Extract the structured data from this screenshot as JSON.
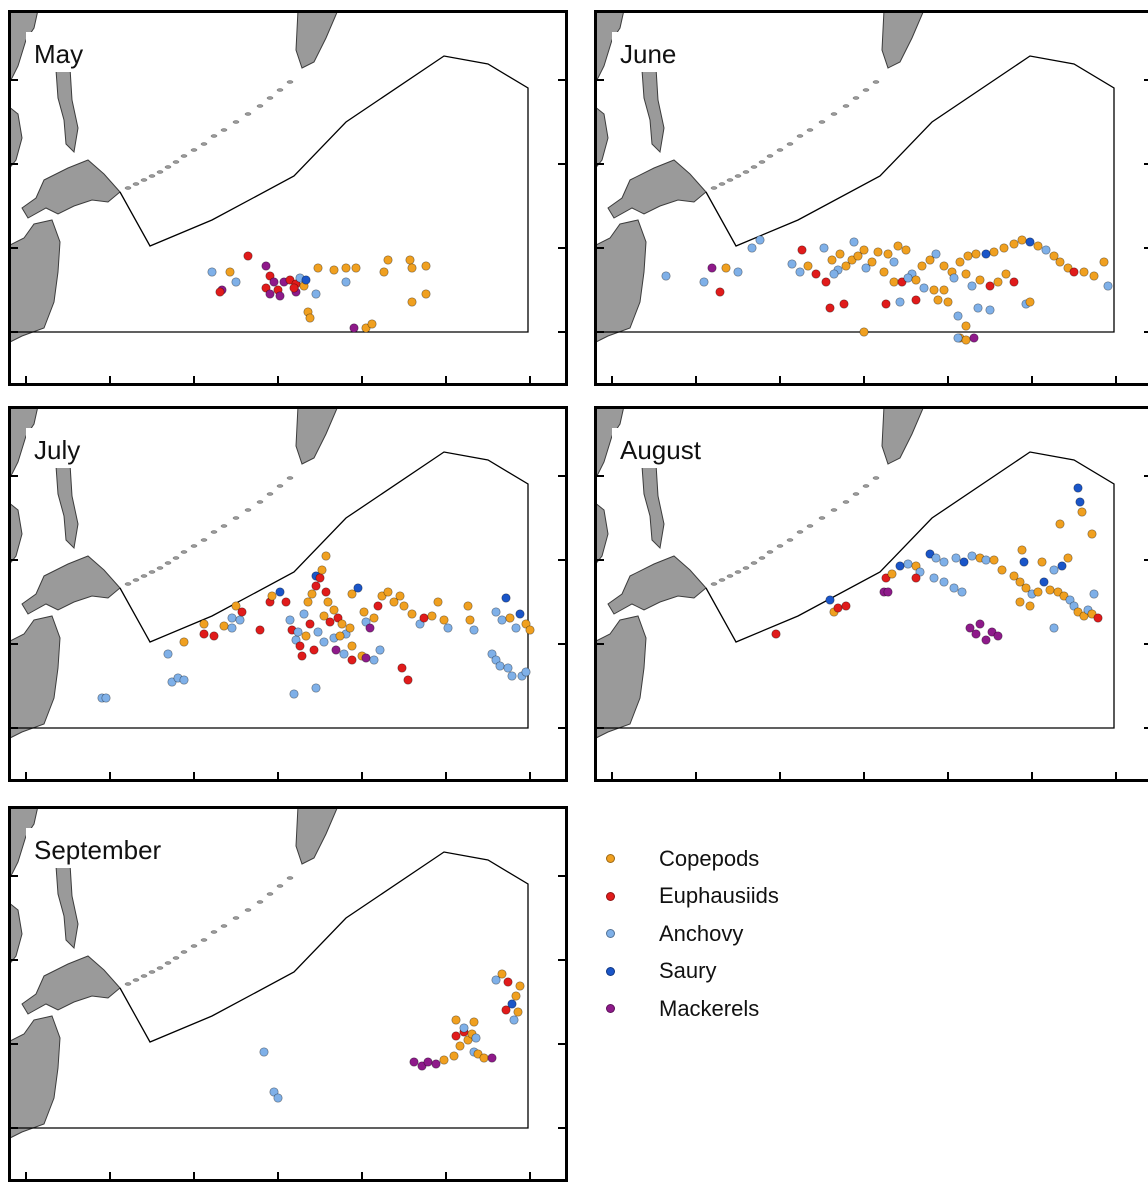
{
  "figure": {
    "panels": [
      {
        "id": "may",
        "month": "May"
      },
      {
        "id": "june",
        "month": "June"
      },
      {
        "id": "july",
        "month": "July"
      },
      {
        "id": "august",
        "month": "August"
      },
      {
        "id": "september",
        "month": "September"
      }
    ],
    "legend": [
      {
        "key": "copepods",
        "label": "Copepods",
        "color": "#F0A020"
      },
      {
        "key": "euphausiids",
        "label": "Euphausiids",
        "color": "#E01B1B"
      },
      {
        "key": "anchovy",
        "label": "Anchovy",
        "color": "#7FB0E8"
      },
      {
        "key": "saury",
        "label": "Saury",
        "color": "#1A55C8"
      },
      {
        "key": "mackerels",
        "label": "Mackerels",
        "color": "#8E1A8A"
      }
    ]
  }
}
